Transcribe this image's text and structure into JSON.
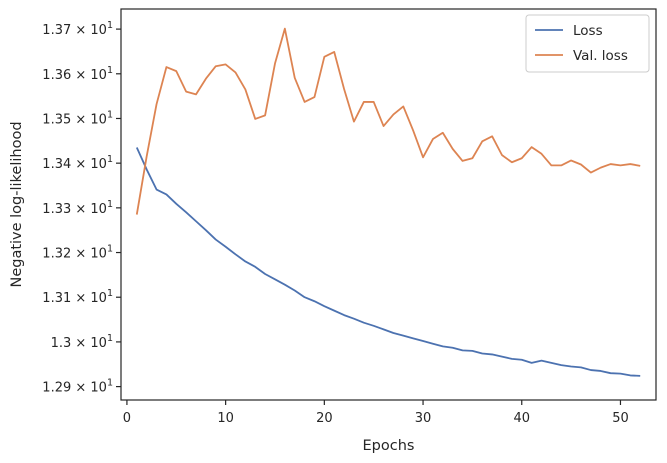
{
  "chart_data": {
    "type": "line",
    "title": "",
    "xlabel": "Epochs",
    "ylabel": "Negative log-likelihood",
    "xlim": [
      -0.6,
      53.6
    ],
    "ylim": [
      12.87,
      13.745
    ],
    "x_ticks": [
      0,
      10,
      20,
      30,
      40,
      50
    ],
    "y_ticks": [
      {
        "value": 12.9,
        "mantissa": "1.29"
      },
      {
        "value": 13.0,
        "mantissa": "1.3"
      },
      {
        "value": 13.1,
        "mantissa": "1.31"
      },
      {
        "value": 13.2,
        "mantissa": "1.32"
      },
      {
        "value": 13.3,
        "mantissa": "1.33"
      },
      {
        "value": 13.4,
        "mantissa": "1.34"
      },
      {
        "value": 13.5,
        "mantissa": "1.35"
      },
      {
        "value": 13.6,
        "mantissa": "1.36"
      },
      {
        "value": 13.7,
        "mantissa": "1.37"
      }
    ],
    "y_tick_suffix": {
      "times": "×",
      "base": "10",
      "exponent": "1"
    },
    "grid": false,
    "legend_position": "top-right",
    "x": [
      1,
      2,
      3,
      4,
      5,
      6,
      7,
      8,
      9,
      10,
      11,
      12,
      13,
      14,
      15,
      16,
      17,
      18,
      19,
      20,
      21,
      22,
      23,
      24,
      25,
      26,
      27,
      28,
      29,
      30,
      31,
      32,
      33,
      34,
      35,
      36,
      37,
      38,
      39,
      40,
      41,
      42,
      43,
      44,
      45,
      46,
      47,
      48,
      49,
      50,
      51,
      52
    ],
    "series": [
      {
        "name": "Loss",
        "color": "#4c72b0",
        "values": [
          13.435,
          13.386,
          13.341,
          13.33,
          13.309,
          13.29,
          13.27,
          13.25,
          13.229,
          13.213,
          13.196,
          13.18,
          13.168,
          13.152,
          13.14,
          13.128,
          13.115,
          13.1,
          13.091,
          13.08,
          13.07,
          13.06,
          13.052,
          13.043,
          13.036,
          13.028,
          13.02,
          13.014,
          13.008,
          13.002,
          12.996,
          12.99,
          12.987,
          12.981,
          12.98,
          12.974,
          12.972,
          12.967,
          12.962,
          12.96,
          12.953,
          12.958,
          12.953,
          12.948,
          12.945,
          12.943,
          12.937,
          12.935,
          12.93,
          12.929,
          12.925,
          12.924
        ]
      },
      {
        "name": "Val. loss",
        "color": "#dd8452",
        "values": [
          13.285,
          13.415,
          13.532,
          13.615,
          13.606,
          13.56,
          13.554,
          13.589,
          13.617,
          13.621,
          13.603,
          13.565,
          13.499,
          13.507,
          13.623,
          13.701,
          13.591,
          13.537,
          13.548,
          13.638,
          13.649,
          13.566,
          13.493,
          13.537,
          13.537,
          13.483,
          13.509,
          13.527,
          13.473,
          13.413,
          13.454,
          13.468,
          13.432,
          13.405,
          13.411,
          13.449,
          13.46,
          13.418,
          13.402,
          13.411,
          13.436,
          13.421,
          13.395,
          13.395,
          13.406,
          13.397,
          13.379,
          13.39,
          13.398,
          13.395,
          13.398,
          13.394
        ]
      }
    ]
  }
}
